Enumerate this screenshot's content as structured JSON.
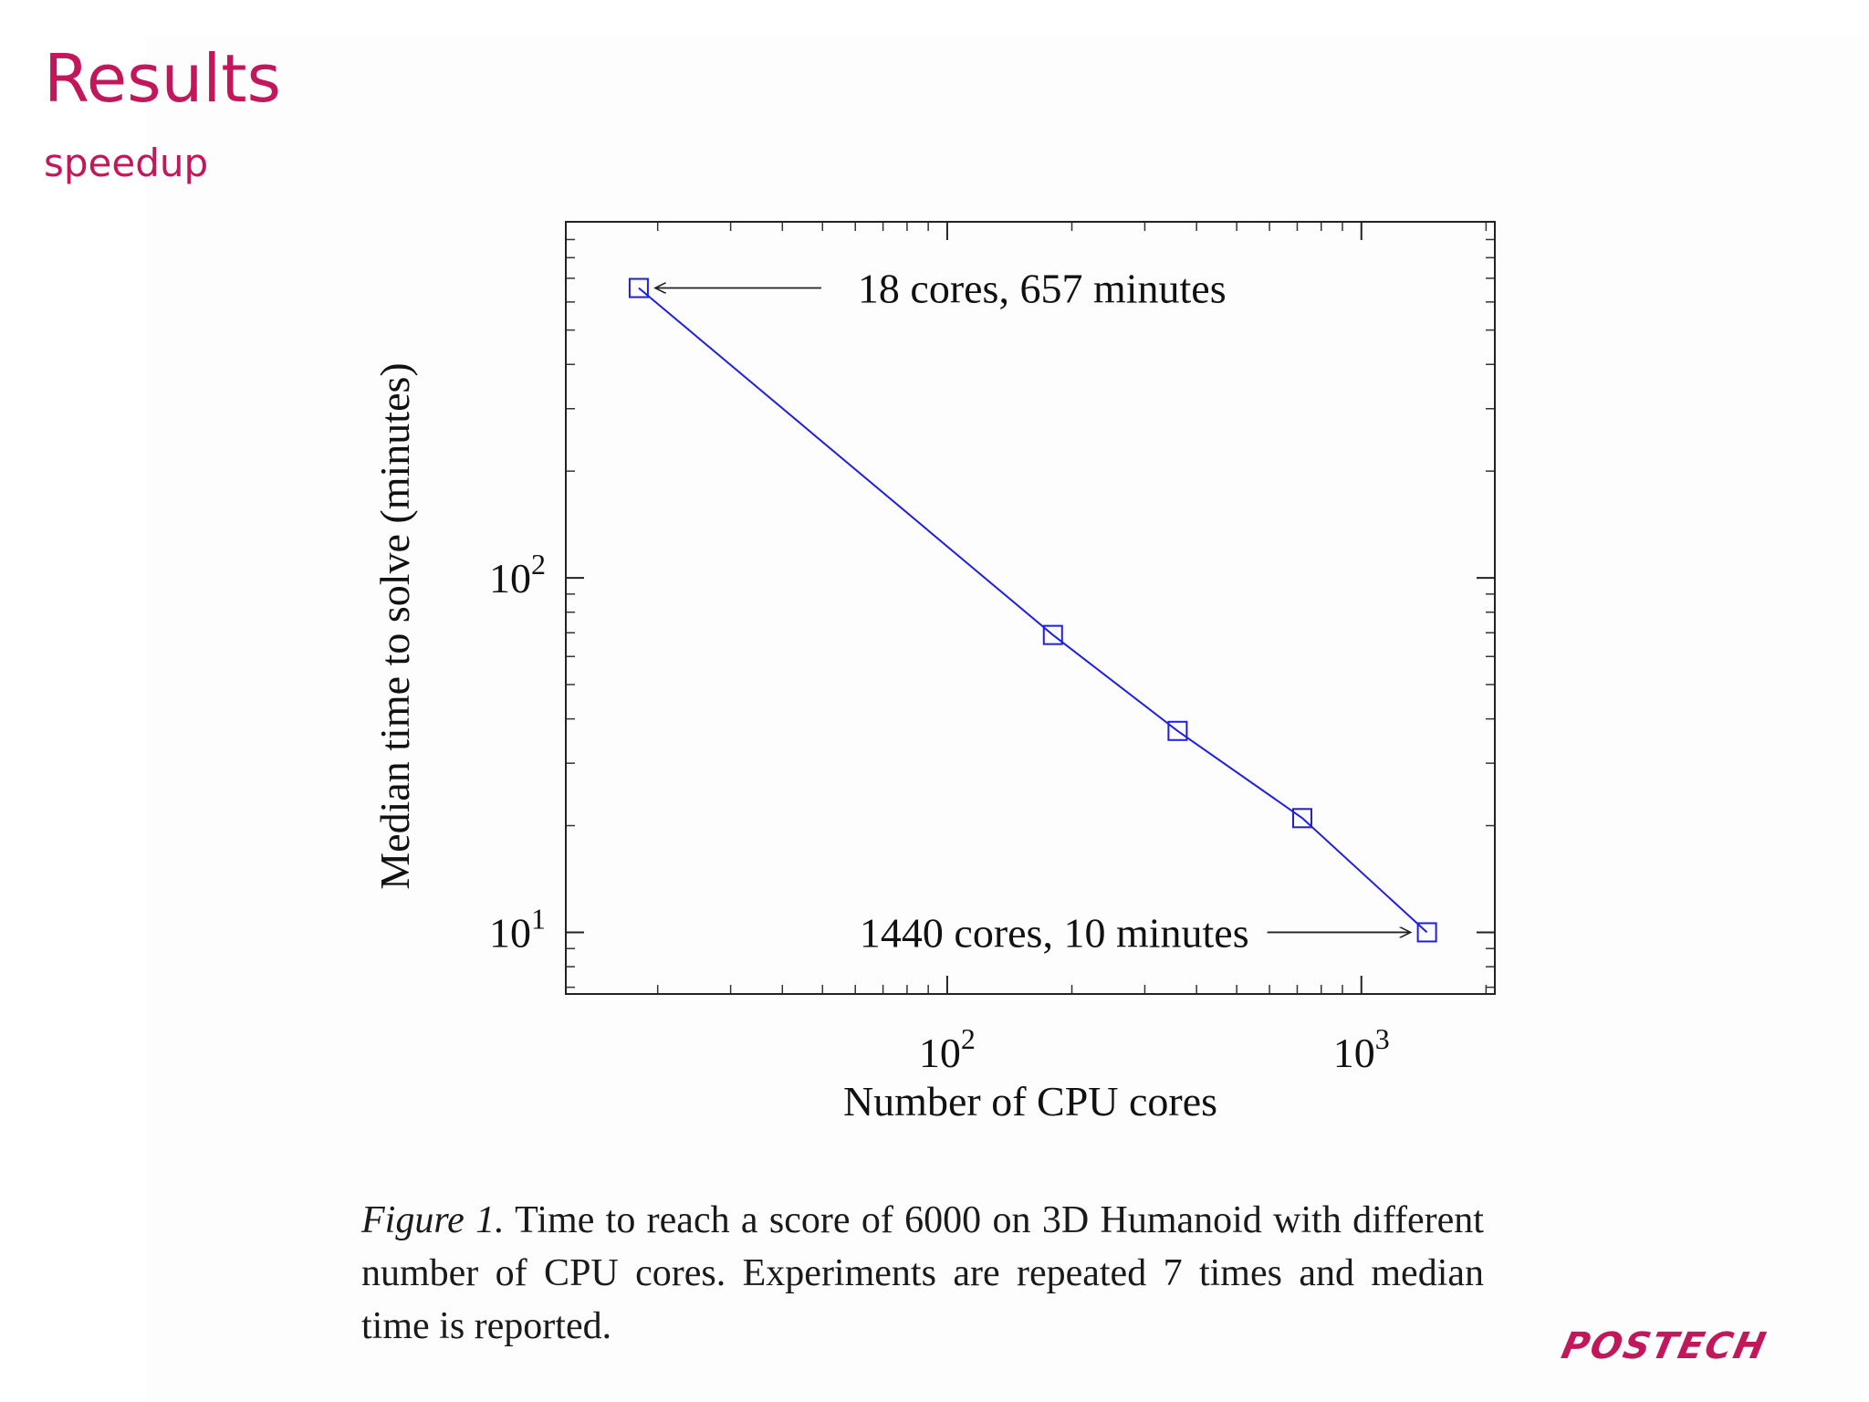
{
  "slide": {
    "title": "Results",
    "subtitle": "speedup"
  },
  "figure": {
    "caption_label": "Figure 1.",
    "caption_text": "Time to reach a score of 6000 on 3D Humanoid with different number of CPU cores. Experiments are repeated 7 times and median time is reported."
  },
  "logo": {
    "text": "POSTECH"
  },
  "colors": {
    "accent": "#c2185b",
    "series": "#1f1fe0"
  },
  "chart_data": {
    "type": "line",
    "xscale": "log",
    "yscale": "log",
    "xlabel": "Number of CPU cores",
    "ylabel": "Median time to solve (minutes)",
    "xlim": [
      12,
      2100
    ],
    "ylim": [
      6.7,
      1010
    ],
    "x_ticks": [
      100,
      1000
    ],
    "x_tick_labels": [
      {
        "base": "10",
        "exp": "2"
      },
      {
        "base": "10",
        "exp": "3"
      }
    ],
    "y_ticks": [
      10,
      100
    ],
    "y_tick_labels": [
      {
        "base": "10",
        "exp": "1"
      },
      {
        "base": "10",
        "exp": "2"
      }
    ],
    "grid": false,
    "series": [
      {
        "marker": "square",
        "x": [
          18,
          180,
          360,
          720,
          1440
        ],
        "y": [
          657,
          69,
          37,
          21,
          10
        ]
      }
    ],
    "annotations": [
      {
        "text": "18 cores, 657 minutes",
        "x": 18,
        "y": 657,
        "side": "right"
      },
      {
        "text": "1440 cores, 10 minutes",
        "x": 1440,
        "y": 10,
        "side": "left"
      }
    ]
  }
}
